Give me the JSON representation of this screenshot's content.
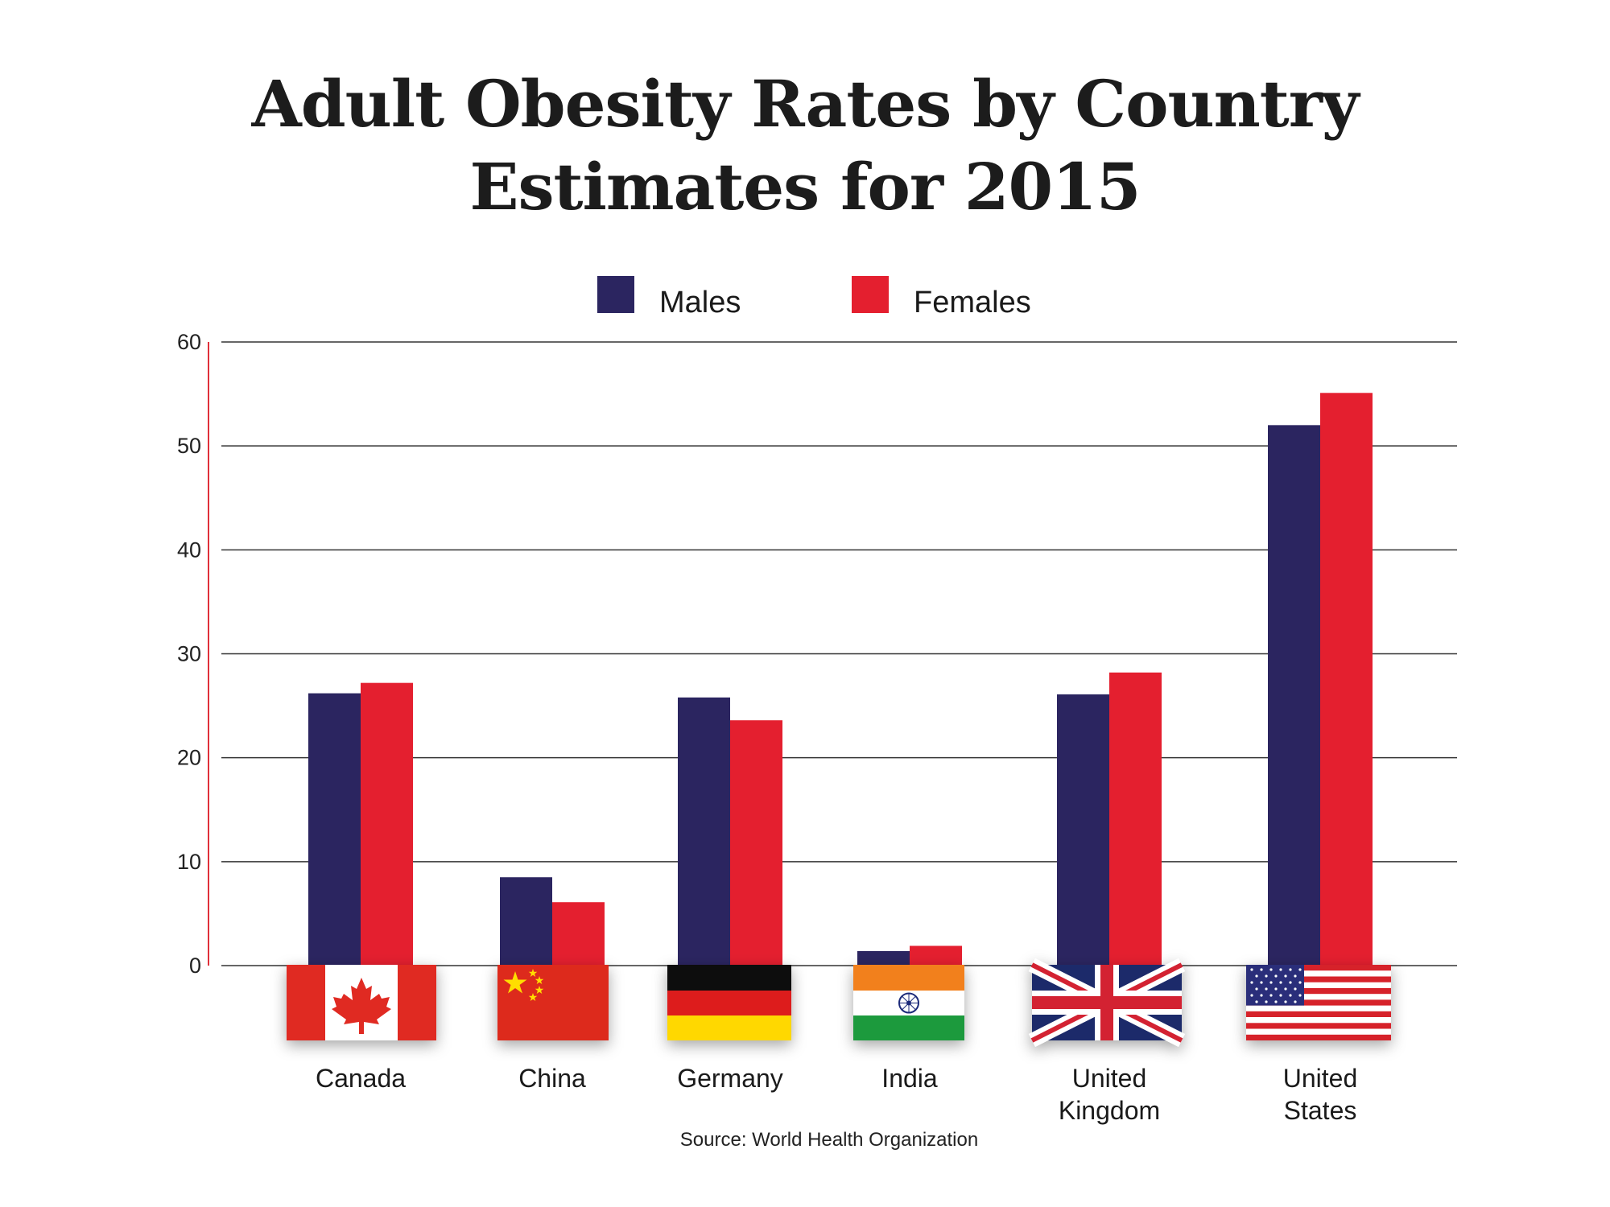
{
  "chart_data": {
    "type": "bar",
    "title": "Adult Obesity Rates by Country",
    "subtitle": "Estimates for 2015",
    "categories": [
      "Canada",
      "China",
      "Germany",
      "India",
      "United Kingdom",
      "United States"
    ],
    "category_lines": [
      [
        "Canada"
      ],
      [
        "China"
      ],
      [
        "Germany"
      ],
      [
        "India"
      ],
      [
        "United",
        "Kingdom"
      ],
      [
        "United",
        "States"
      ]
    ],
    "series": [
      {
        "name": "Males",
        "color": "#2b2560",
        "values": [
          26.2,
          8.5,
          25.8,
          1.4,
          26.1,
          52.0
        ]
      },
      {
        "name": "Females",
        "color": "#e41f2f",
        "values": [
          27.2,
          6.1,
          23.6,
          1.9,
          28.2,
          55.1
        ]
      }
    ],
    "ylim": [
      0,
      60
    ],
    "yticks": [
      0,
      10,
      20,
      30,
      40,
      50,
      60
    ],
    "grid": true,
    "legend": "top-center",
    "xlabel": "",
    "ylabel": "",
    "source": "Source: World Health Organization"
  }
}
